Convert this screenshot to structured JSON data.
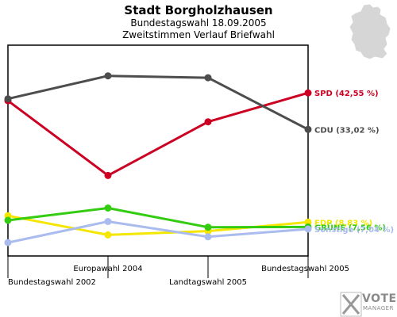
{
  "header": {
    "title": "Stadt Borgholzhausen",
    "subtitle1": "Bundestagswahl 18.09.2005",
    "subtitle2": "Zweitstimmen Verlauf Briefwahl"
  },
  "watermark": {
    "brand": "VOTE",
    "sub": "MANAGER"
  },
  "chart_data": {
    "type": "line",
    "title": "Stadt Borgholzhausen",
    "subtitle": "Bundestagswahl 18.09.2005 · Zweitstimmen Verlauf Briefwahl",
    "categories": [
      "Bundestagswahl 2002",
      "Europawahl 2004",
      "Landtagswahl 2005",
      "Bundestagswahl 2005"
    ],
    "grid": false,
    "series": [
      {
        "name": "SPD",
        "label": "SPD (42,55 %)",
        "color": "#cc0022",
        "values": [
          40.5,
          21.0,
          35.0,
          42.55
        ]
      },
      {
        "name": "CDU",
        "label": "CDU (33,02 %)",
        "color": "#4d4d4d",
        "values": [
          41.0,
          47.0,
          46.5,
          33.02
        ]
      },
      {
        "name": "FDP",
        "label": "FDP (8,83 %)",
        "color": "#f5e600",
        "values": [
          10.5,
          5.5,
          6.5,
          8.83
        ]
      },
      {
        "name": "GRÜNE",
        "label": "GRÜNE (7,56 %)",
        "color": "#33cc11",
        "values": [
          9.3,
          12.5,
          7.5,
          7.56
        ]
      },
      {
        "name": "Sonstige",
        "label": "Sonstige (7,04 %)",
        "color": "#aabbee",
        "values": [
          3.5,
          9.0,
          5.0,
          7.04
        ]
      }
    ]
  }
}
